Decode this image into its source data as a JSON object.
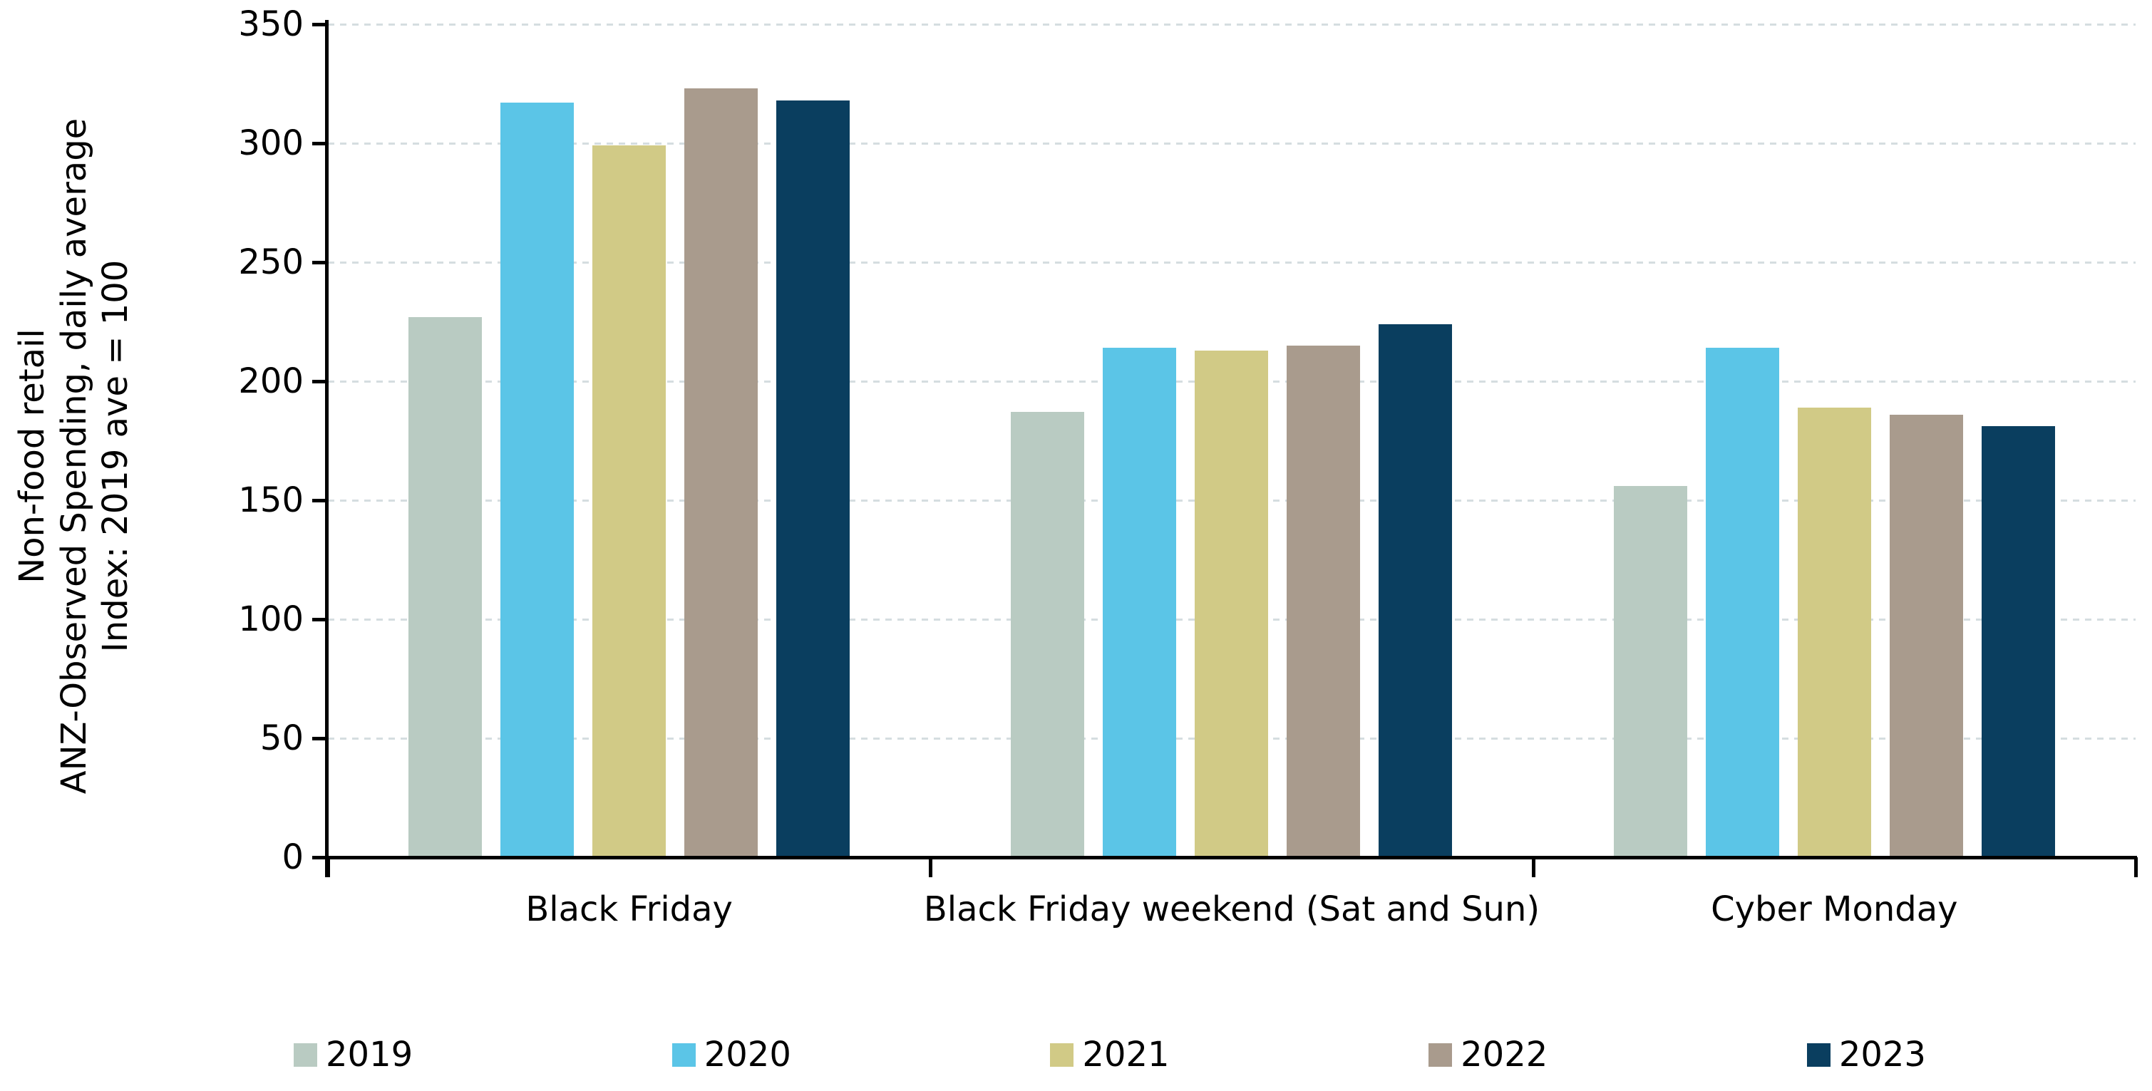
{
  "chart_data": {
    "type": "bar",
    "title": "",
    "ylabel_lines": {
      "0": "Non-food retail",
      "1": "ANZ-Observed Spending, daily average",
      "2": "Index: 2019 ave = 100"
    },
    "categories": [
      "Black Friday",
      "Black Friday weekend (Sat and Sun)",
      "Cyber Monday"
    ],
    "series": [
      {
        "name": "2019",
        "color": "#b9cbc2",
        "values": [
          227,
          187,
          156
        ]
      },
      {
        "name": "2020",
        "color": "#5bc5e7",
        "values": [
          317,
          214,
          214
        ]
      },
      {
        "name": "2021",
        "color": "#d1ca86",
        "values": [
          299,
          213,
          189
        ]
      },
      {
        "name": "2022",
        "color": "#a99b8d",
        "values": [
          323,
          215,
          186
        ]
      },
      {
        "name": "2023",
        "color": "#0a3e5f",
        "values": [
          318,
          224,
          181
        ]
      }
    ],
    "ylim": [
      0,
      350
    ],
    "ytick_step": 50,
    "yticks": [
      0,
      50,
      100,
      150,
      200,
      250,
      300,
      350
    ],
    "grid": "horizontal-dashed",
    "gridline_color": "#d5dde0",
    "axis_color": "#000000",
    "legend_position": "bottom"
  }
}
